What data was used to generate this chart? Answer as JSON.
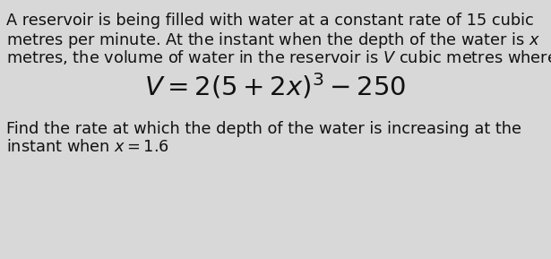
{
  "background_color": "#d8d8d8",
  "text_paragraph1_line1": "A reservoir is being filled with water at a constant rate of 15 cubic",
  "text_paragraph1_line2": "metres per minute. At the instant when the depth of the water is $x$",
  "text_paragraph1_line3": "metres, the volume of water in the reservoir is $V$ cubic metres where",
  "formula": "$V = 2(5 + 2x)^3 - 250$",
  "text_paragraph2_line1": "Find the rate at which the depth of the water is increasing at the",
  "text_paragraph2_line2": "instant when $x = 1.6$",
  "paragraph1_fontsize": 12.8,
  "formula_fontsize": 21,
  "paragraph2_fontsize": 12.8,
  "text_color": "#111111",
  "font_family": "DejaVu Sans"
}
